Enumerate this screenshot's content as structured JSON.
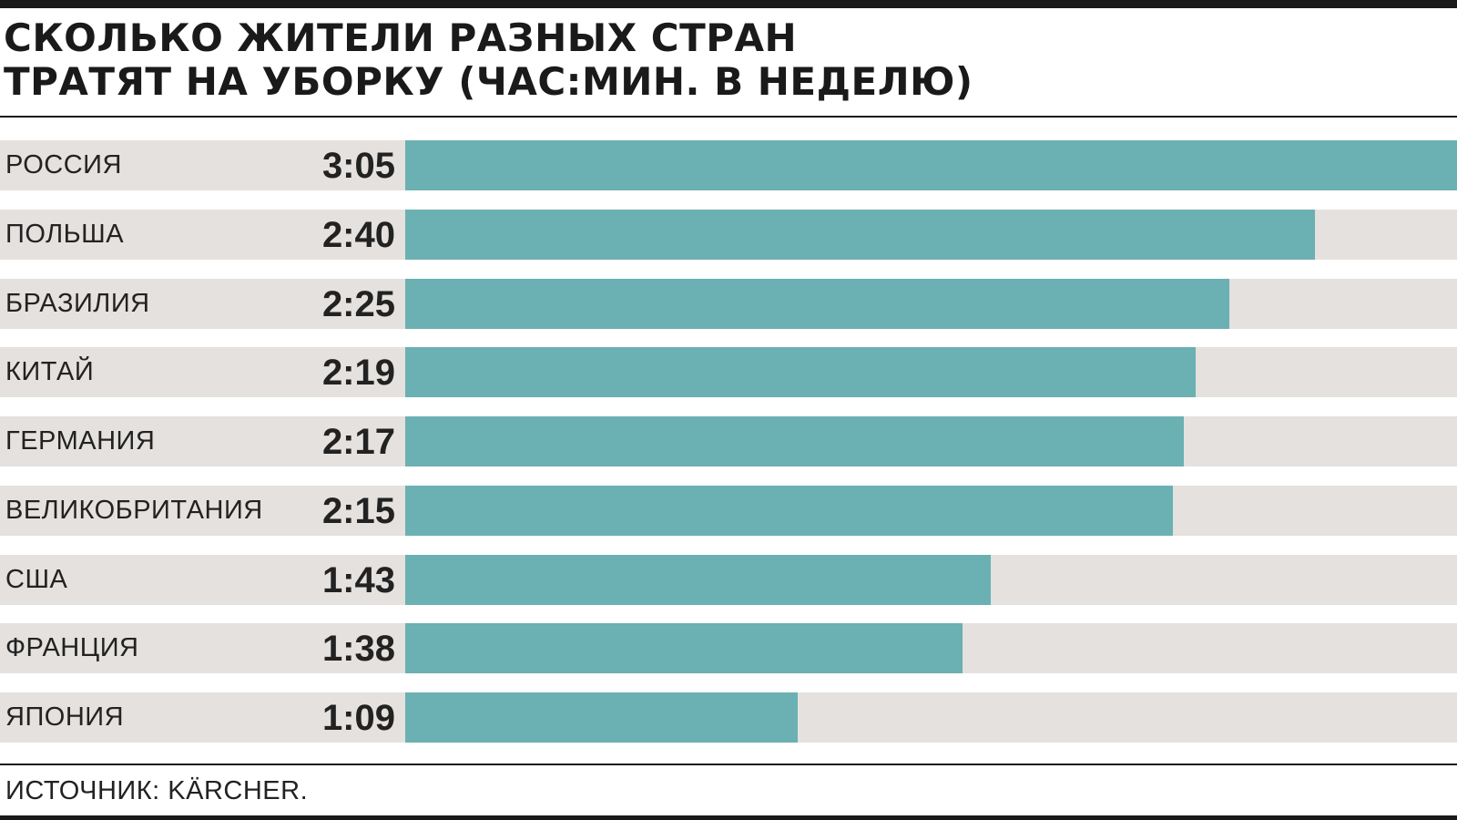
{
  "chart_data": {
    "type": "bar",
    "orientation": "horizontal",
    "title_lines": [
      "СКОЛЬКО ЖИТЕЛИ РАЗНЫХ СТРАН",
      "ТРАТЯТ НА УБОРКУ (ЧАС:МИН. В НЕДЕЛЮ)"
    ],
    "categories": [
      "РОССИЯ",
      "ПОЛЬША",
      "БРАЗИЛИЯ",
      "КИТАЙ",
      "ГЕРМАНИЯ",
      "ВЕЛИКОБРИТАНИЯ",
      "США",
      "ФРАНЦИЯ",
      "ЯПОНИЯ"
    ],
    "value_labels": [
      "3:05",
      "2:40",
      "2:25",
      "2:19",
      "2:17",
      "2:15",
      "1:43",
      "1:38",
      "1:09"
    ],
    "values_minutes": [
      185,
      160,
      145,
      139,
      137,
      135,
      103,
      98,
      69
    ],
    "xlim": [
      0,
      185
    ],
    "grid": false,
    "legend": "none",
    "colors": {
      "bar": "#6bb0b2",
      "track": "#e4e1de",
      "text": "#222222",
      "rule": "#1a1a1a"
    },
    "source": "ИСТОЧНИК: KÄRCHER."
  }
}
